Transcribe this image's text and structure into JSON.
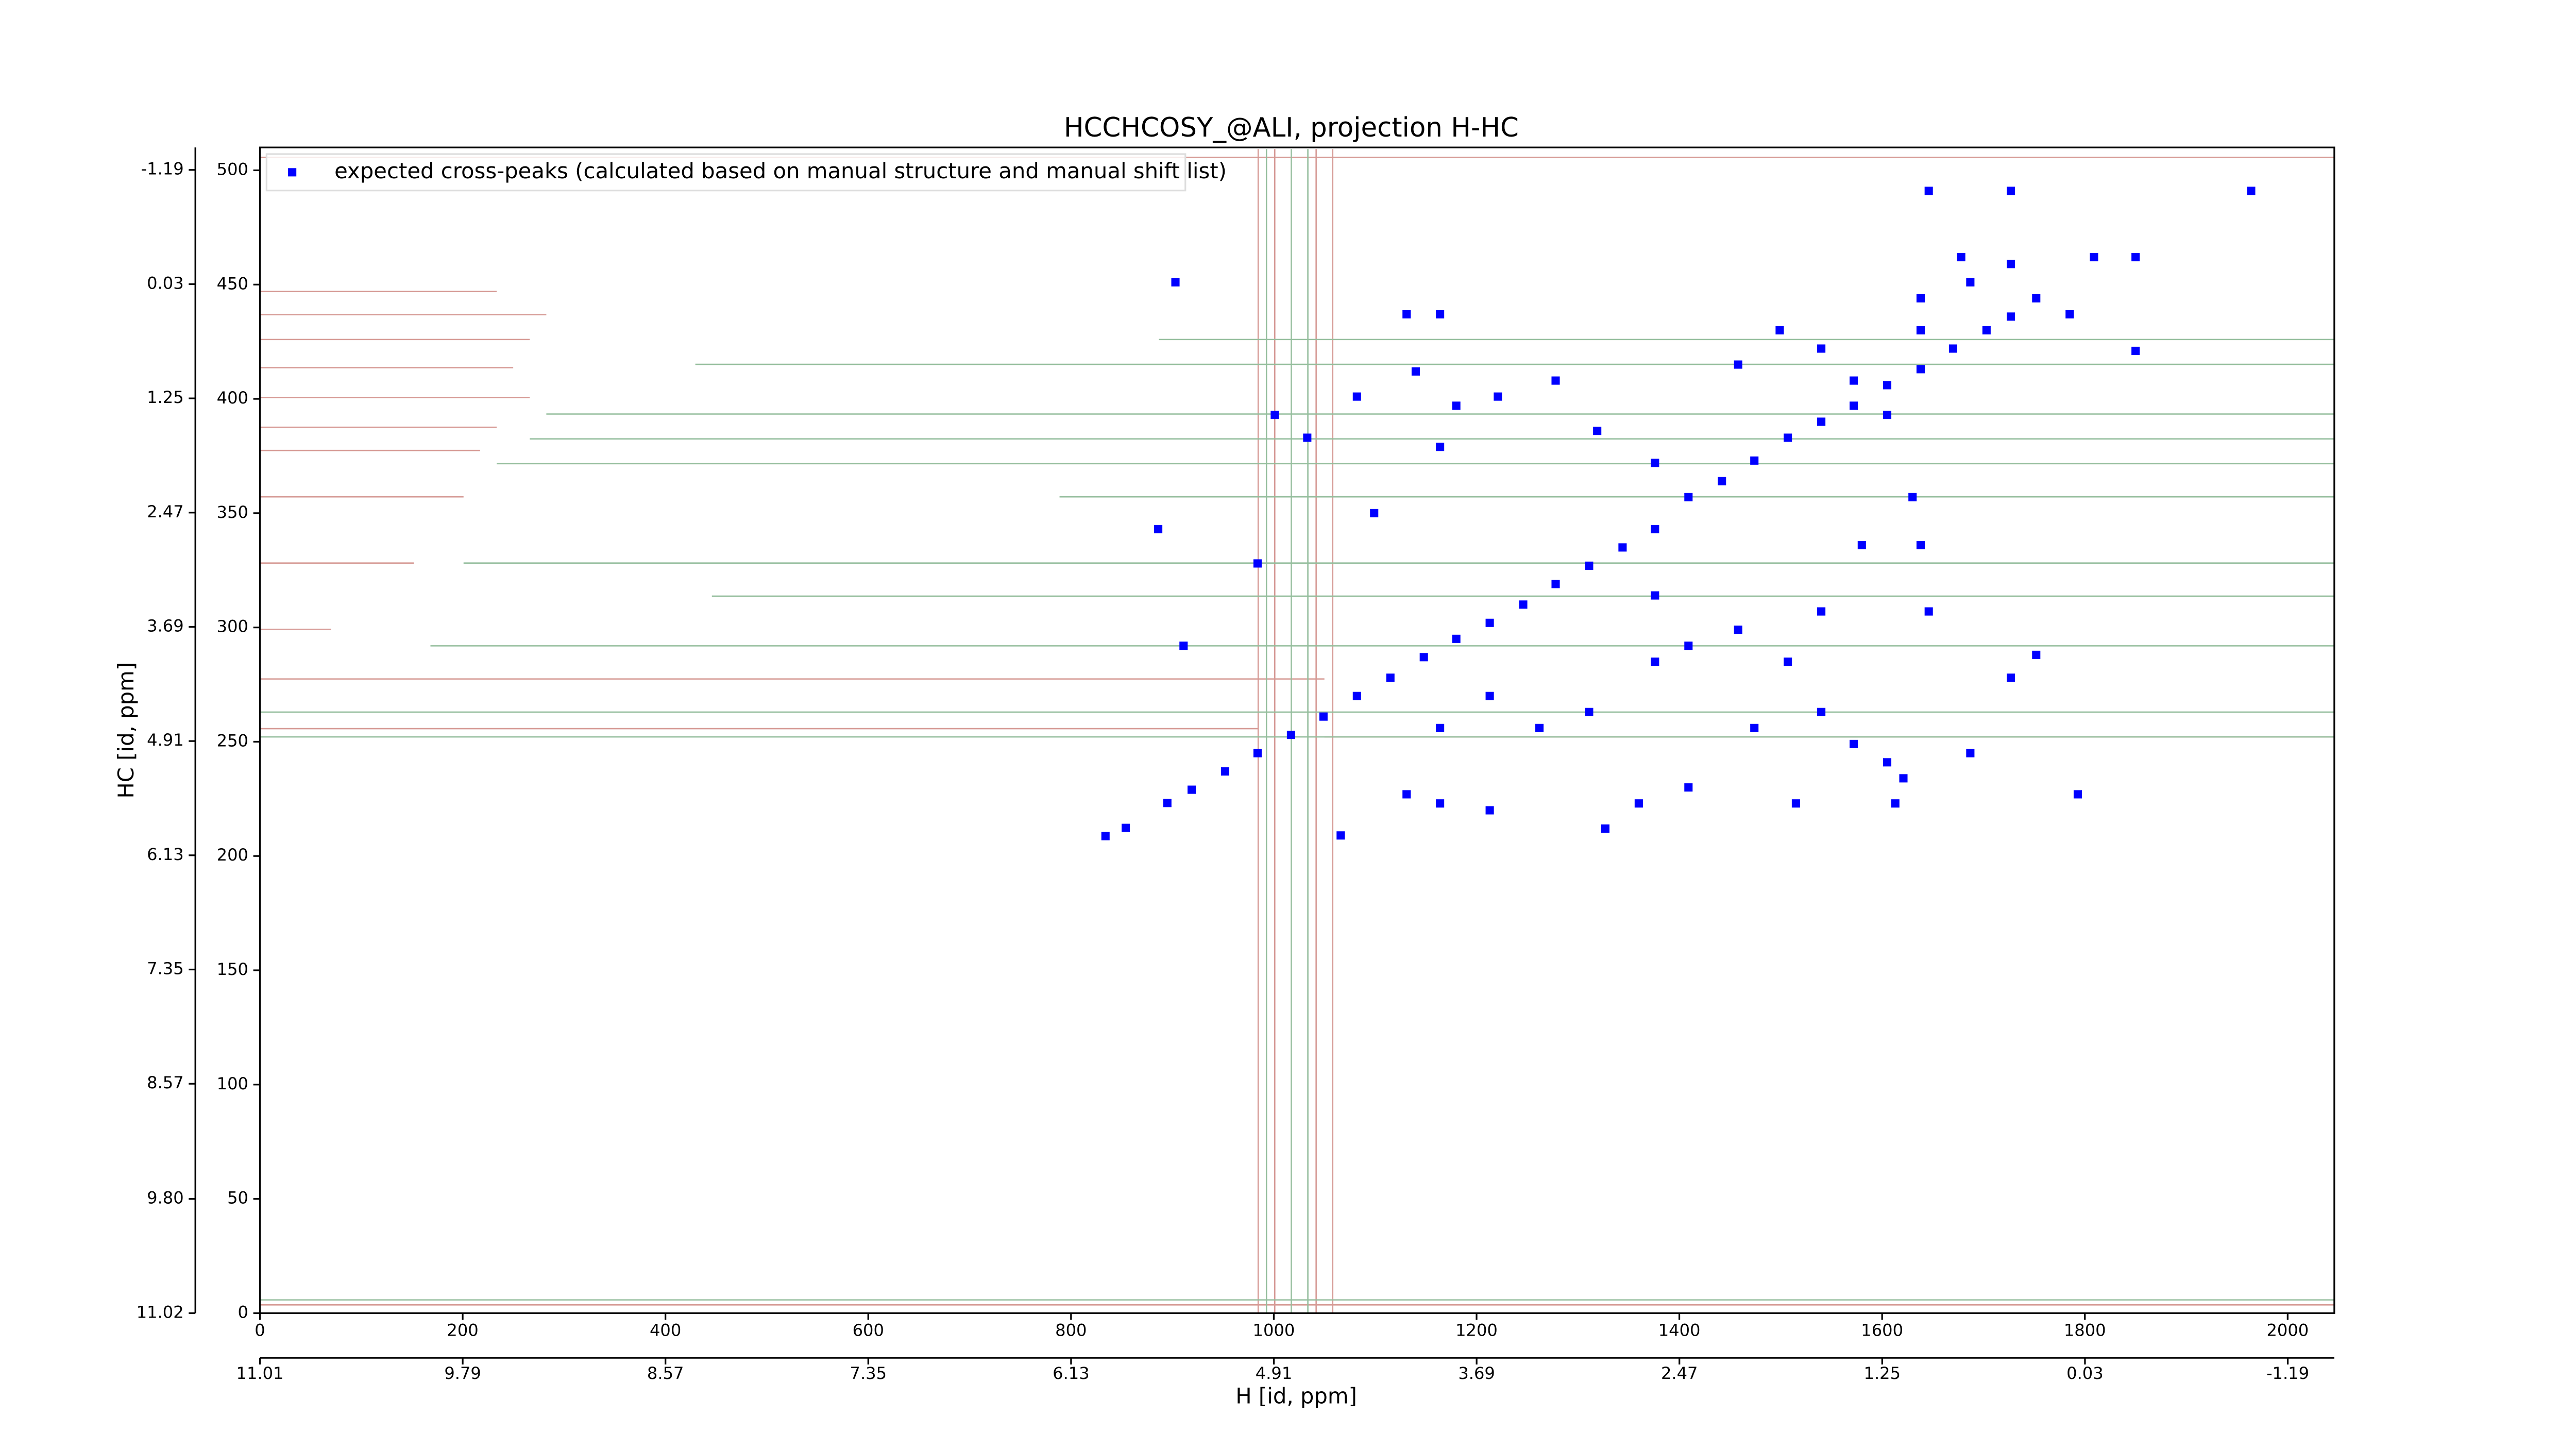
{
  "chart_data": {
    "type": "scatter",
    "title": "HCCHCOSY_@ALI, projection H-HC",
    "xlabel": "H [id, ppm]",
    "ylabel": "HC [id, ppm]",
    "xlim": [
      0,
      2046
    ],
    "ylim": [
      0,
      510
    ],
    "xticks": [
      0,
      200,
      400,
      600,
      800,
      1000,
      1200,
      1400,
      1600,
      1800,
      2000
    ],
    "yticks": [
      0,
      50,
      100,
      150,
      200,
      250,
      300,
      350,
      400,
      450,
      500
    ],
    "x2lim": [
      11.01,
      -1.47
    ],
    "x2ticks": [
      11.01,
      9.79,
      8.57,
      7.35,
      6.13,
      4.91,
      3.69,
      2.47,
      1.25,
      0.03,
      -1.19
    ],
    "y2lim": [
      11.02,
      -1.43
    ],
    "y2ticks": [
      11.02,
      {
        "value": 9.8,
        "label": "9.80"
      },
      8.57,
      7.35,
      6.13,
      4.91,
      3.69,
      2.47,
      1.25,
      0.03,
      -1.19
    ],
    "legend": "upper left",
    "series": [
      {
        "name": "expected cross-peaks (calculated based on manual structure and manual shift list)",
        "color": "#0000ff",
        "x": [
          834,
          854,
          895,
          919,
          952,
          984,
          1017,
          1049,
          1082,
          1115,
          1148,
          1180,
          1213,
          1246,
          1278,
          1311,
          1344,
          1376,
          1409,
          1442,
          1474,
          1507,
          1540,
          1572,
          1605,
          1638,
          1670,
          1703,
          1727,
          1001,
          1033,
          1082,
          1140,
          1164,
          1099,
          984,
          886,
          911,
          1131,
          1180,
          1221,
          1278,
          1319,
          1376,
          1458,
          1499,
          1540,
          1572,
          1605,
          1638,
          1687,
          1727,
          1752,
          1785,
          1809,
          1850,
          1638,
          1678,
          1727,
          1646,
          1964,
          1850,
          1458,
          1507,
          1540,
          1474,
          1572,
          1621,
          1687,
          1540,
          1376,
          1311,
          1262,
          1213,
          1164,
          1131,
          1164,
          1213,
          1327,
          1360,
          1409,
          1515,
          1613,
          1793,
          1727,
          1752,
          1376,
          1638,
          1630,
          903,
          1164,
          1409,
          1066,
          1605,
          1646,
          1580
        ],
        "values": [
          208.7,
          212.3,
          223.2,
          229,
          237,
          245,
          253,
          261,
          270,
          278,
          287,
          295,
          302,
          310,
          319,
          327,
          335,
          343,
          357,
          364,
          373,
          383,
          390,
          397,
          406,
          413,
          422,
          430,
          436,
          393,
          383,
          401,
          412,
          379,
          350,
          328,
          343,
          292,
          437,
          397,
          401,
          408,
          386,
          372,
          415,
          430,
          422,
          408,
          393,
          430,
          451,
          459,
          444,
          437,
          462,
          462,
          444,
          462,
          491,
          491,
          491,
          421,
          299,
          285,
          263,
          256,
          249,
          234,
          245,
          307,
          285,
          263,
          256,
          270,
          256,
          227,
          223,
          220,
          212,
          223,
          230,
          223,
          223,
          227,
          278,
          288,
          314,
          336,
          357,
          451,
          437,
          292,
          209,
          241,
          307,
          336
        ]
      }
    ]
  }
}
